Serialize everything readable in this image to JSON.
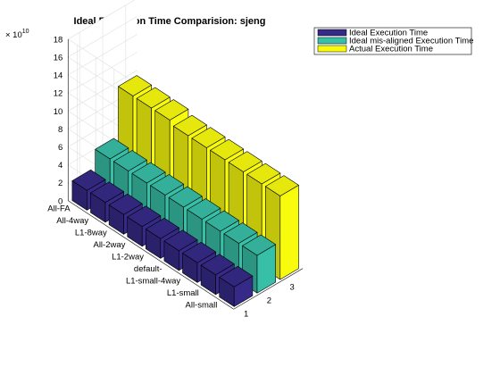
{
  "chart_data": {
    "type": "bar3",
    "title": "Ideal Execution Time Comparision: sjeng",
    "exponent_label": "× 10",
    "exponent_power": "10",
    "categories": [
      "All-FA",
      "All-4way",
      "L1-8way",
      "All-2way",
      "L1-2way",
      "default-",
      "L1-small-4way",
      "L1-small",
      "All-small"
    ],
    "series_axis_ticks": [
      "1",
      "2",
      "3"
    ],
    "zlim": [
      0,
      18
    ],
    "zticks": [
      "0",
      "2",
      "4",
      "6",
      "8",
      "10",
      "12",
      "14",
      "16",
      "18"
    ],
    "grid": true,
    "legend_position": "top-right",
    "series": [
      {
        "name": "Ideal Execution Time",
        "color": "#352a87",
        "values": [
          2.2,
          2.2,
          2.2,
          2.2,
          2.2,
          2.2,
          2.2,
          2.2,
          2.2
        ]
      },
      {
        "name": "Ideal mis-aligned Execution Time",
        "color": "#38bfa7",
        "values": [
          4.2,
          4.2,
          4.2,
          4.2,
          4.2,
          4.2,
          4.2,
          4.2,
          4.2
        ]
      },
      {
        "name": "Actual Execution Time",
        "color": "#f9fb0e",
        "values": [
          9.7,
          9.7,
          9.7,
          9.3,
          9.3,
          9.3,
          9.3,
          9.3,
          9.3
        ]
      }
    ]
  }
}
